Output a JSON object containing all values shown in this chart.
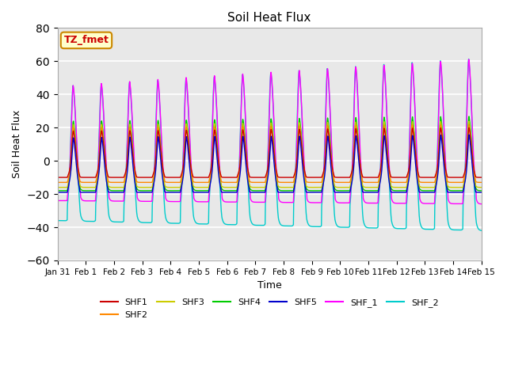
{
  "title": "Soil Heat Flux",
  "xlabel": "Time",
  "ylabel": "Soil Heat Flux",
  "ylim": [
    -60,
    80
  ],
  "yticks": [
    -60,
    -40,
    -20,
    0,
    20,
    40,
    60,
    80
  ],
  "xtick_labels": [
    "Jan 31",
    "Feb 1",
    "Feb 2",
    "Feb 3",
    "Feb 4",
    "Feb 5",
    "Feb 6",
    "Feb 7",
    "Feb 8",
    "Feb 9",
    "Feb 10",
    "Feb 11",
    "Feb 12",
    "Feb 13",
    "Feb 14",
    "Feb 15"
  ],
  "annotation_text": "TZ_fmet",
  "annotation_bg": "#ffffcc",
  "annotation_edge": "#cc8800",
  "annotation_text_color": "#cc0000",
  "series_colors": {
    "SHF1": "#cc0000",
    "SHF2": "#ff8800",
    "SHF3": "#cccc00",
    "SHF4": "#00cc00",
    "SHF5": "#0000cc",
    "SHF_1": "#ff00ff",
    "SHF_2": "#00cccc"
  },
  "background_color": "#e8e8e8",
  "grid_color": "#ffffff"
}
